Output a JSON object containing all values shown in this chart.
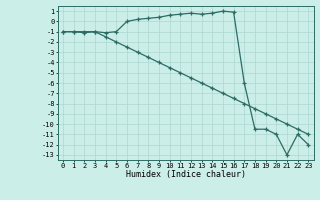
{
  "xlabel": "Humidex (Indice chaleur)",
  "ylabel": "",
  "background_color": "#cceee8",
  "line_color": "#2d6b65",
  "grid_color": "#aad8d0",
  "xlim": [
    -0.5,
    23.5
  ],
  "ylim": [
    -13.5,
    1.5
  ],
  "xticks": [
    0,
    1,
    2,
    3,
    4,
    5,
    6,
    7,
    8,
    9,
    10,
    11,
    12,
    13,
    14,
    15,
    16,
    17,
    18,
    19,
    20,
    21,
    22,
    23
  ],
  "yticks": [
    1,
    0,
    -1,
    -2,
    -3,
    -4,
    -5,
    -6,
    -7,
    -8,
    -9,
    -10,
    -11,
    -12,
    -13
  ],
  "line1_x": [
    0,
    1,
    2,
    3,
    4,
    5,
    6,
    7,
    8,
    9,
    10,
    11,
    12,
    13,
    14,
    15,
    16,
    17,
    18,
    19,
    20,
    21,
    22,
    23
  ],
  "line1_y": [
    -1,
    -1,
    -1.1,
    -1,
    -1.1,
    -1,
    0,
    0.2,
    0.3,
    0.4,
    0.6,
    0.7,
    0.8,
    0.7,
    0.8,
    1.0,
    0.9,
    -6,
    -10.5,
    -10.5,
    -11,
    -13,
    -11,
    -12
  ],
  "line2_x": [
    0,
    1,
    2,
    3,
    4,
    5,
    6,
    7,
    8,
    9,
    10,
    11,
    12,
    13,
    14,
    15,
    16,
    17,
    18,
    19,
    20,
    21,
    22,
    23
  ],
  "line2_y": [
    -1,
    -1,
    -1,
    -1,
    -1.5,
    -2,
    -2.5,
    -3,
    -3.5,
    -4,
    -4.5,
    -5,
    -5.5,
    -6,
    -6.5,
    -7,
    -7.5,
    -8,
    -8.5,
    -9,
    -9.5,
    -10,
    -10.5,
    -11
  ],
  "tick_fontsize": 5.0,
  "xlabel_fontsize": 6.0
}
